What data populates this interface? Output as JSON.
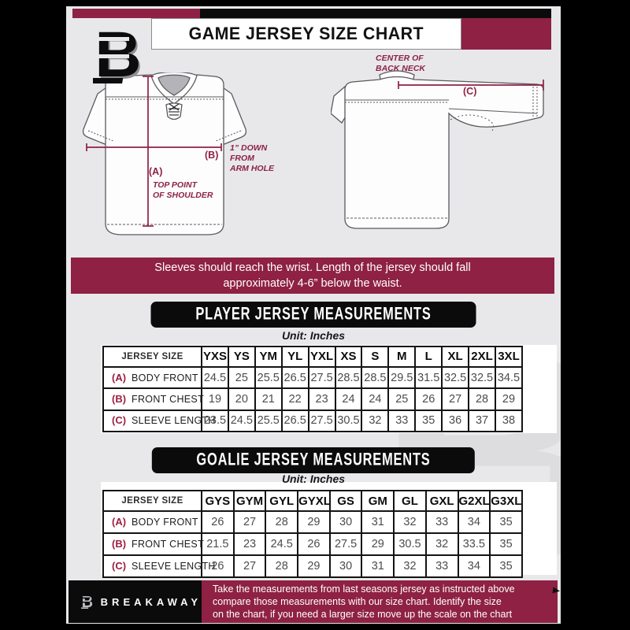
{
  "colors": {
    "maroon": "#8e2144",
    "black": "#0b0b0c",
    "background_gray": "#e8e8ea",
    "watermark_gray": "#dddde0",
    "table_value_gray": "#4c4c50"
  },
  "header": {
    "title": "GAME JERSEY SIZE CHART",
    "logo_icon": "breakaway-b-logo"
  },
  "diagram": {
    "front": {
      "label_a": "(A)",
      "label_b": "(B)",
      "note_a": [
        "TOP POINT",
        "OF SHOULDER"
      ],
      "note_b": [
        "1” DOWN",
        "FROM",
        "ARM HOLE"
      ]
    },
    "back": {
      "label_c": "(C)",
      "note_c": [
        "CENTER OF",
        "BACK NECK"
      ]
    }
  },
  "info_banner": {
    "lines": [
      "Sleeves should reach the wrist. Length of the jersey should fall",
      "approximately 4-6” below the waist."
    ]
  },
  "chart_data": [
    {
      "type": "table",
      "title": "PLAYER JERSEY MEASUREMENTS",
      "unit_label": "Unit: Inches",
      "corner_header": "JERSEY SIZE",
      "columns": [
        "YXS",
        "YS",
        "YM",
        "YL",
        "YXL",
        "XS",
        "S",
        "M",
        "L",
        "XL",
        "2XL",
        "3XL"
      ],
      "rows": [
        {
          "key": "(A)",
          "label": "BODY FRONT",
          "values": [
            "24.5",
            "25",
            "25.5",
            "26.5",
            "27.5",
            "28.5",
            "28.5",
            "29.5",
            "31.5",
            "32.5",
            "32.5",
            "34.5"
          ]
        },
        {
          "key": "(B)",
          "label": "FRONT CHEST",
          "values": [
            "19",
            "20",
            "21",
            "22",
            "23",
            "24",
            "24",
            "25",
            "26",
            "27",
            "28",
            "29"
          ]
        },
        {
          "key": "(C)",
          "label": "SLEEVE LENGTH",
          "values": [
            "23.5",
            "24.5",
            "25.5",
            "26.5",
            "27.5",
            "30.5",
            "32",
            "33",
            "35",
            "36",
            "37",
            "38"
          ]
        }
      ]
    },
    {
      "type": "table",
      "title": "GOALIE JERSEY MEASUREMENTS",
      "unit_label": "Unit: Inches",
      "corner_header": "JERSEY SIZE",
      "columns": [
        "GYS",
        "GYM",
        "GYL",
        "GYXL",
        "GS",
        "GM",
        "GL",
        "GXL",
        "G2XL",
        "G3XL"
      ],
      "rows": [
        {
          "key": "(A)",
          "label": "BODY FRONT",
          "values": [
            "26",
            "27",
            "28",
            "29",
            "30",
            "31",
            "32",
            "33",
            "34",
            "35"
          ]
        },
        {
          "key": "(B)",
          "label": "FRONT CHEST",
          "values": [
            "21.5",
            "23",
            "24.5",
            "26",
            "27.5",
            "29",
            "30.5",
            "32",
            "33.5",
            "35"
          ]
        },
        {
          "key": "(C)",
          "label": "SLEEVE LENGTH",
          "values": [
            "26",
            "27",
            "28",
            "29",
            "30",
            "31",
            "32",
            "33",
            "34",
            "35"
          ]
        }
      ]
    }
  ],
  "footer": {
    "brand": "BREAKAWAY",
    "lines": [
      "Take the measurements from last seasons jersey as instructed above",
      "compare those measurements  with our size chart. Identify the size",
      "on the chart, if you need a larger size move up the scale on the chart"
    ]
  }
}
